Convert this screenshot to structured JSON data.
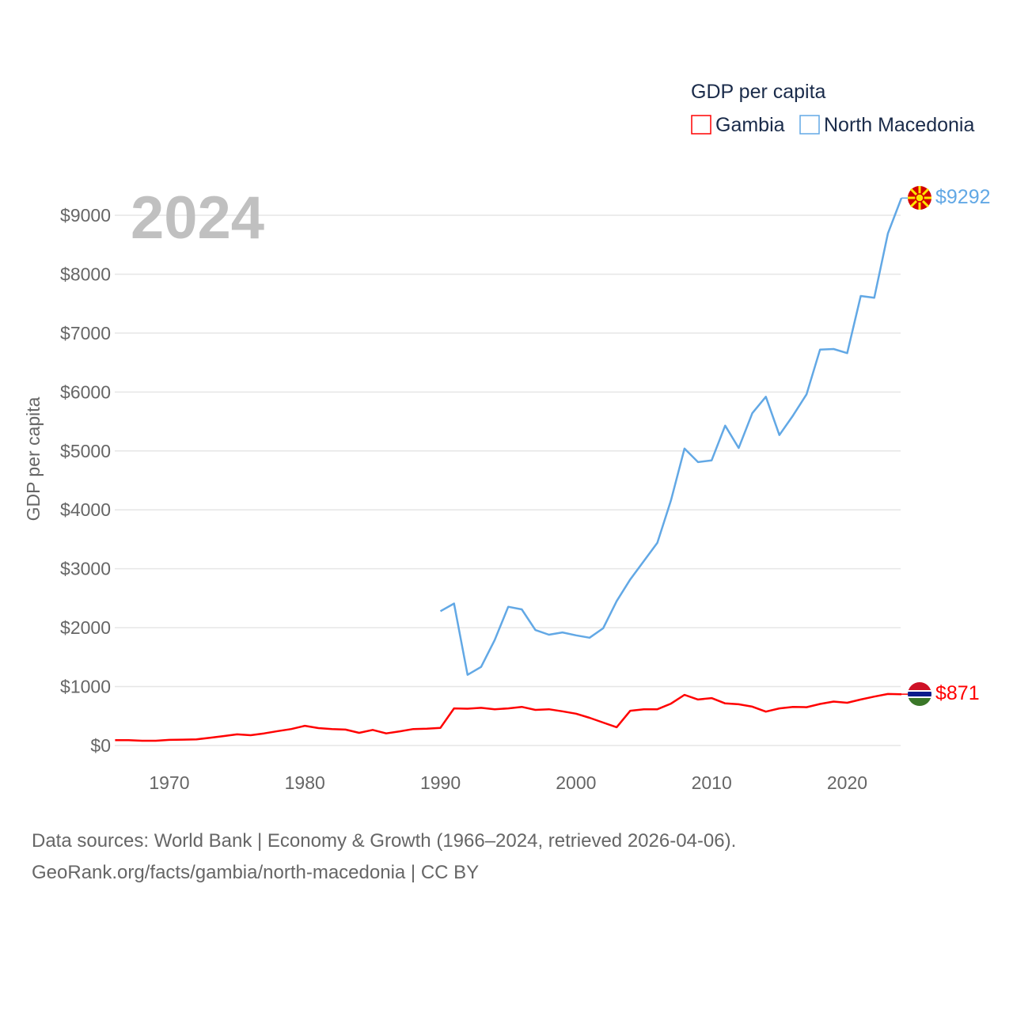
{
  "chart_data": {
    "type": "line",
    "title": "GDP per capita",
    "ylabel": "GDP per capita",
    "xlabel": "",
    "year_label": "2024",
    "xlim": [
      1966,
      2024
    ],
    "ylim": [
      0,
      9500
    ],
    "grid": true,
    "legend_placement": "top-right",
    "x_ticks": [
      1970,
      1980,
      1990,
      2000,
      2010,
      2020
    ],
    "y_ticks": [
      0,
      1000,
      2000,
      3000,
      4000,
      5000,
      6000,
      7000,
      8000,
      9000
    ],
    "y_tick_labels": [
      "$0",
      "$1000",
      "$2000",
      "$3000",
      "$4000",
      "$5000",
      "$6000",
      "$7000",
      "$8000",
      "$9000"
    ],
    "series": [
      {
        "name": "Gambia",
        "color": "#ff0000",
        "end_label": "$871",
        "flag": "gambia-flag",
        "start_year": 1966,
        "values": [
          90,
          90,
          80,
          80,
          95,
          100,
          105,
          130,
          160,
          190,
          175,
          205,
          245,
          280,
          335,
          295,
          280,
          270,
          215,
          265,
          205,
          240,
          280,
          285,
          300,
          630,
          625,
          640,
          615,
          630,
          655,
          605,
          615,
          580,
          540,
          470,
          390,
          310,
          590,
          615,
          615,
          710,
          860,
          780,
          805,
          715,
          700,
          660,
          575,
          630,
          655,
          650,
          705,
          745,
          725,
          780,
          830,
          875,
          871
        ]
      },
      {
        "name": "North Macedonia",
        "color": "#62a8e5",
        "end_label": "$9292",
        "flag": "north-macedonia-flag",
        "start_year": 1990,
        "values": [
          2280,
          2410,
          1200,
          1334,
          1790,
          2355,
          2310,
          1960,
          1880,
          1920,
          1870,
          1830,
          1990,
          2450,
          2820,
          3130,
          3440,
          4160,
          5040,
          4810,
          4840,
          5430,
          5050,
          5640,
          5920,
          5270,
          5600,
          5960,
          6720,
          6730,
          6660,
          7630,
          7600,
          8690,
          9292
        ]
      }
    ]
  },
  "footer": {
    "line1": "Data sources: World Bank | Economy & Growth (1966–2024, retrieved 2026-04-06).",
    "line2": "GeoRank.org/facts/gambia/north-macedonia | CC BY"
  }
}
